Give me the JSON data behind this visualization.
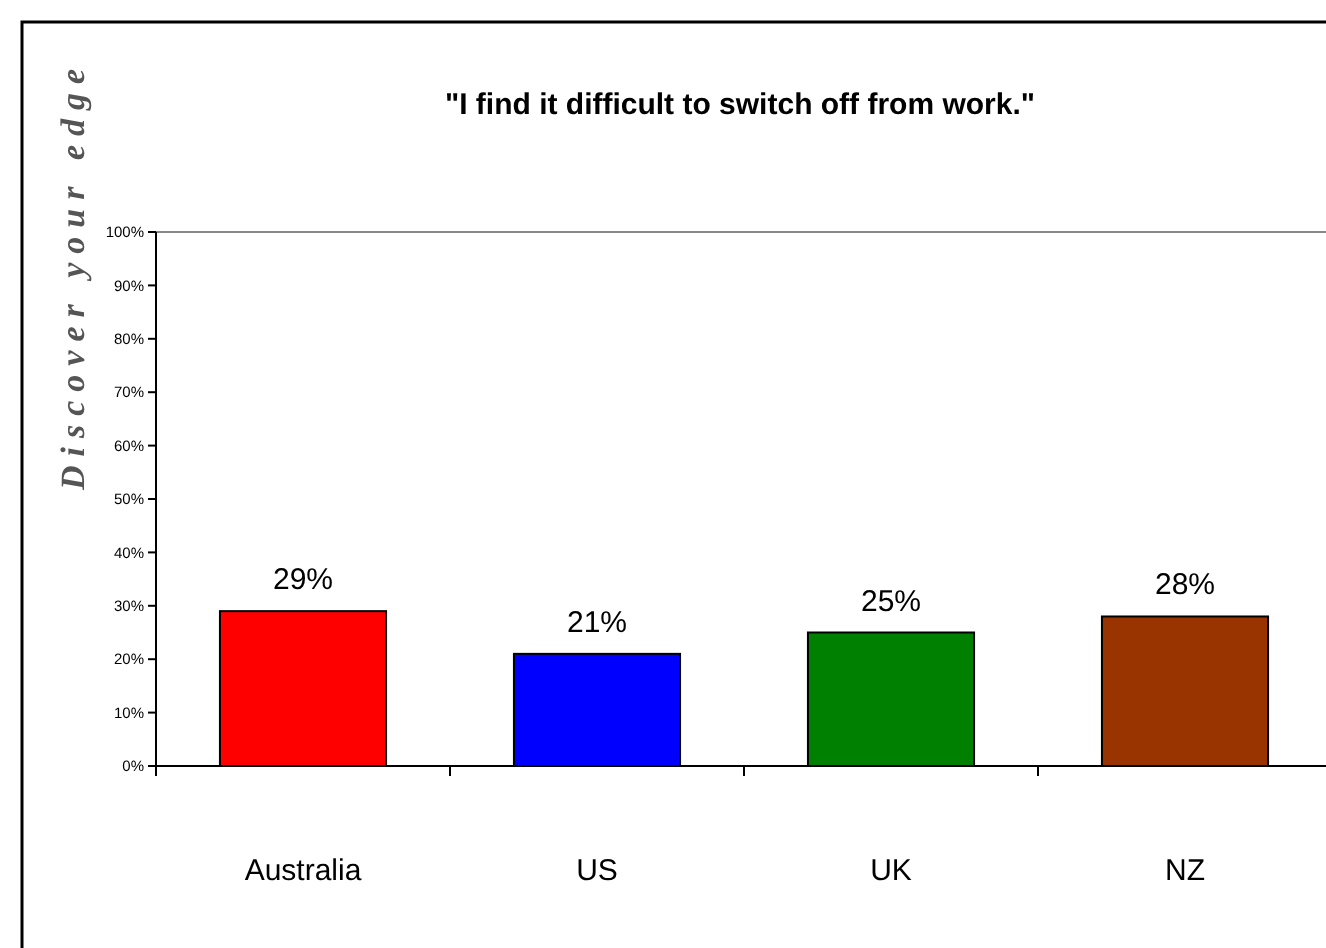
{
  "chart_data": {
    "type": "bar",
    "title": "\"I find it difficult to switch off from work.\"",
    "categories": [
      "Australia",
      "US",
      "UK",
      "NZ"
    ],
    "values": [
      29,
      21,
      25,
      28
    ],
    "colors": [
      "#ff0000",
      "#0000ff",
      "#008000",
      "#993300"
    ],
    "value_labels": [
      "29%",
      "21%",
      "25%",
      "28%"
    ],
    "ylim": [
      0,
      100
    ],
    "yticks": [
      {
        "value": 0,
        "label": "0%"
      },
      {
        "value": 10,
        "label": "10%"
      },
      {
        "value": 20,
        "label": "20%"
      },
      {
        "value": 30,
        "label": "30%"
      },
      {
        "value": 40,
        "label": "40%"
      },
      {
        "value": 50,
        "label": "50%"
      },
      {
        "value": 60,
        "label": "60%"
      },
      {
        "value": 70,
        "label": "70%"
      },
      {
        "value": 80,
        "label": "80%"
      },
      {
        "value": 90,
        "label": "90%"
      },
      {
        "value": 100,
        "label": "100%"
      }
    ],
    "annotations": [
      "Discover your edge"
    ]
  }
}
